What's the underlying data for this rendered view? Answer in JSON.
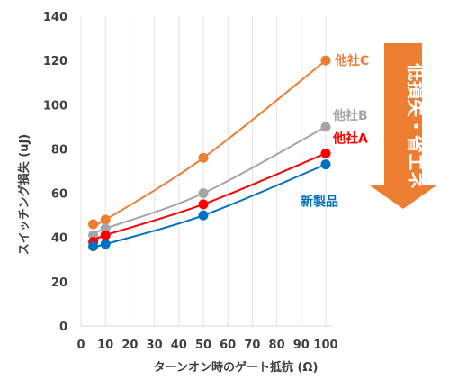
{
  "chart_data": {
    "type": "line",
    "title": "",
    "xlabel": "ターンオン時のゲート抵抗 (Ω)",
    "ylabel": "スイッチング損失 (uJ)",
    "xlim": [
      0,
      100
    ],
    "ylim": [
      0,
      140
    ],
    "x_ticks": [
      "0",
      "10",
      "20",
      "30",
      "40",
      "50",
      "60",
      "70",
      "80",
      "90",
      "100"
    ],
    "y_ticks": [
      "0",
      "20",
      "40",
      "60",
      "80",
      "100",
      "120",
      "140"
    ],
    "grid": "vertical lines only",
    "series": [
      {
        "name": "他社C",
        "color": "#ED7D31",
        "x": [
          5,
          10,
          50,
          100
        ],
        "y": [
          46,
          48,
          76,
          120
        ]
      },
      {
        "name": "他社B",
        "color": "#A5A5A5",
        "x": [
          5,
          10,
          50,
          100
        ],
        "y": [
          41,
          44,
          60,
          90
        ]
      },
      {
        "name": "他社A",
        "color": "#FF0000",
        "x": [
          5,
          10,
          50,
          100
        ],
        "y": [
          38,
          41,
          55,
          78
        ]
      },
      {
        "name": "新製品",
        "color": "#0070C0",
        "x": [
          5,
          10,
          50,
          100
        ],
        "y": [
          36,
          37,
          50,
          73
        ]
      }
    ],
    "annotation": {
      "text": "低損失・省エネ",
      "arrow_color": "#ED7D31"
    }
  }
}
